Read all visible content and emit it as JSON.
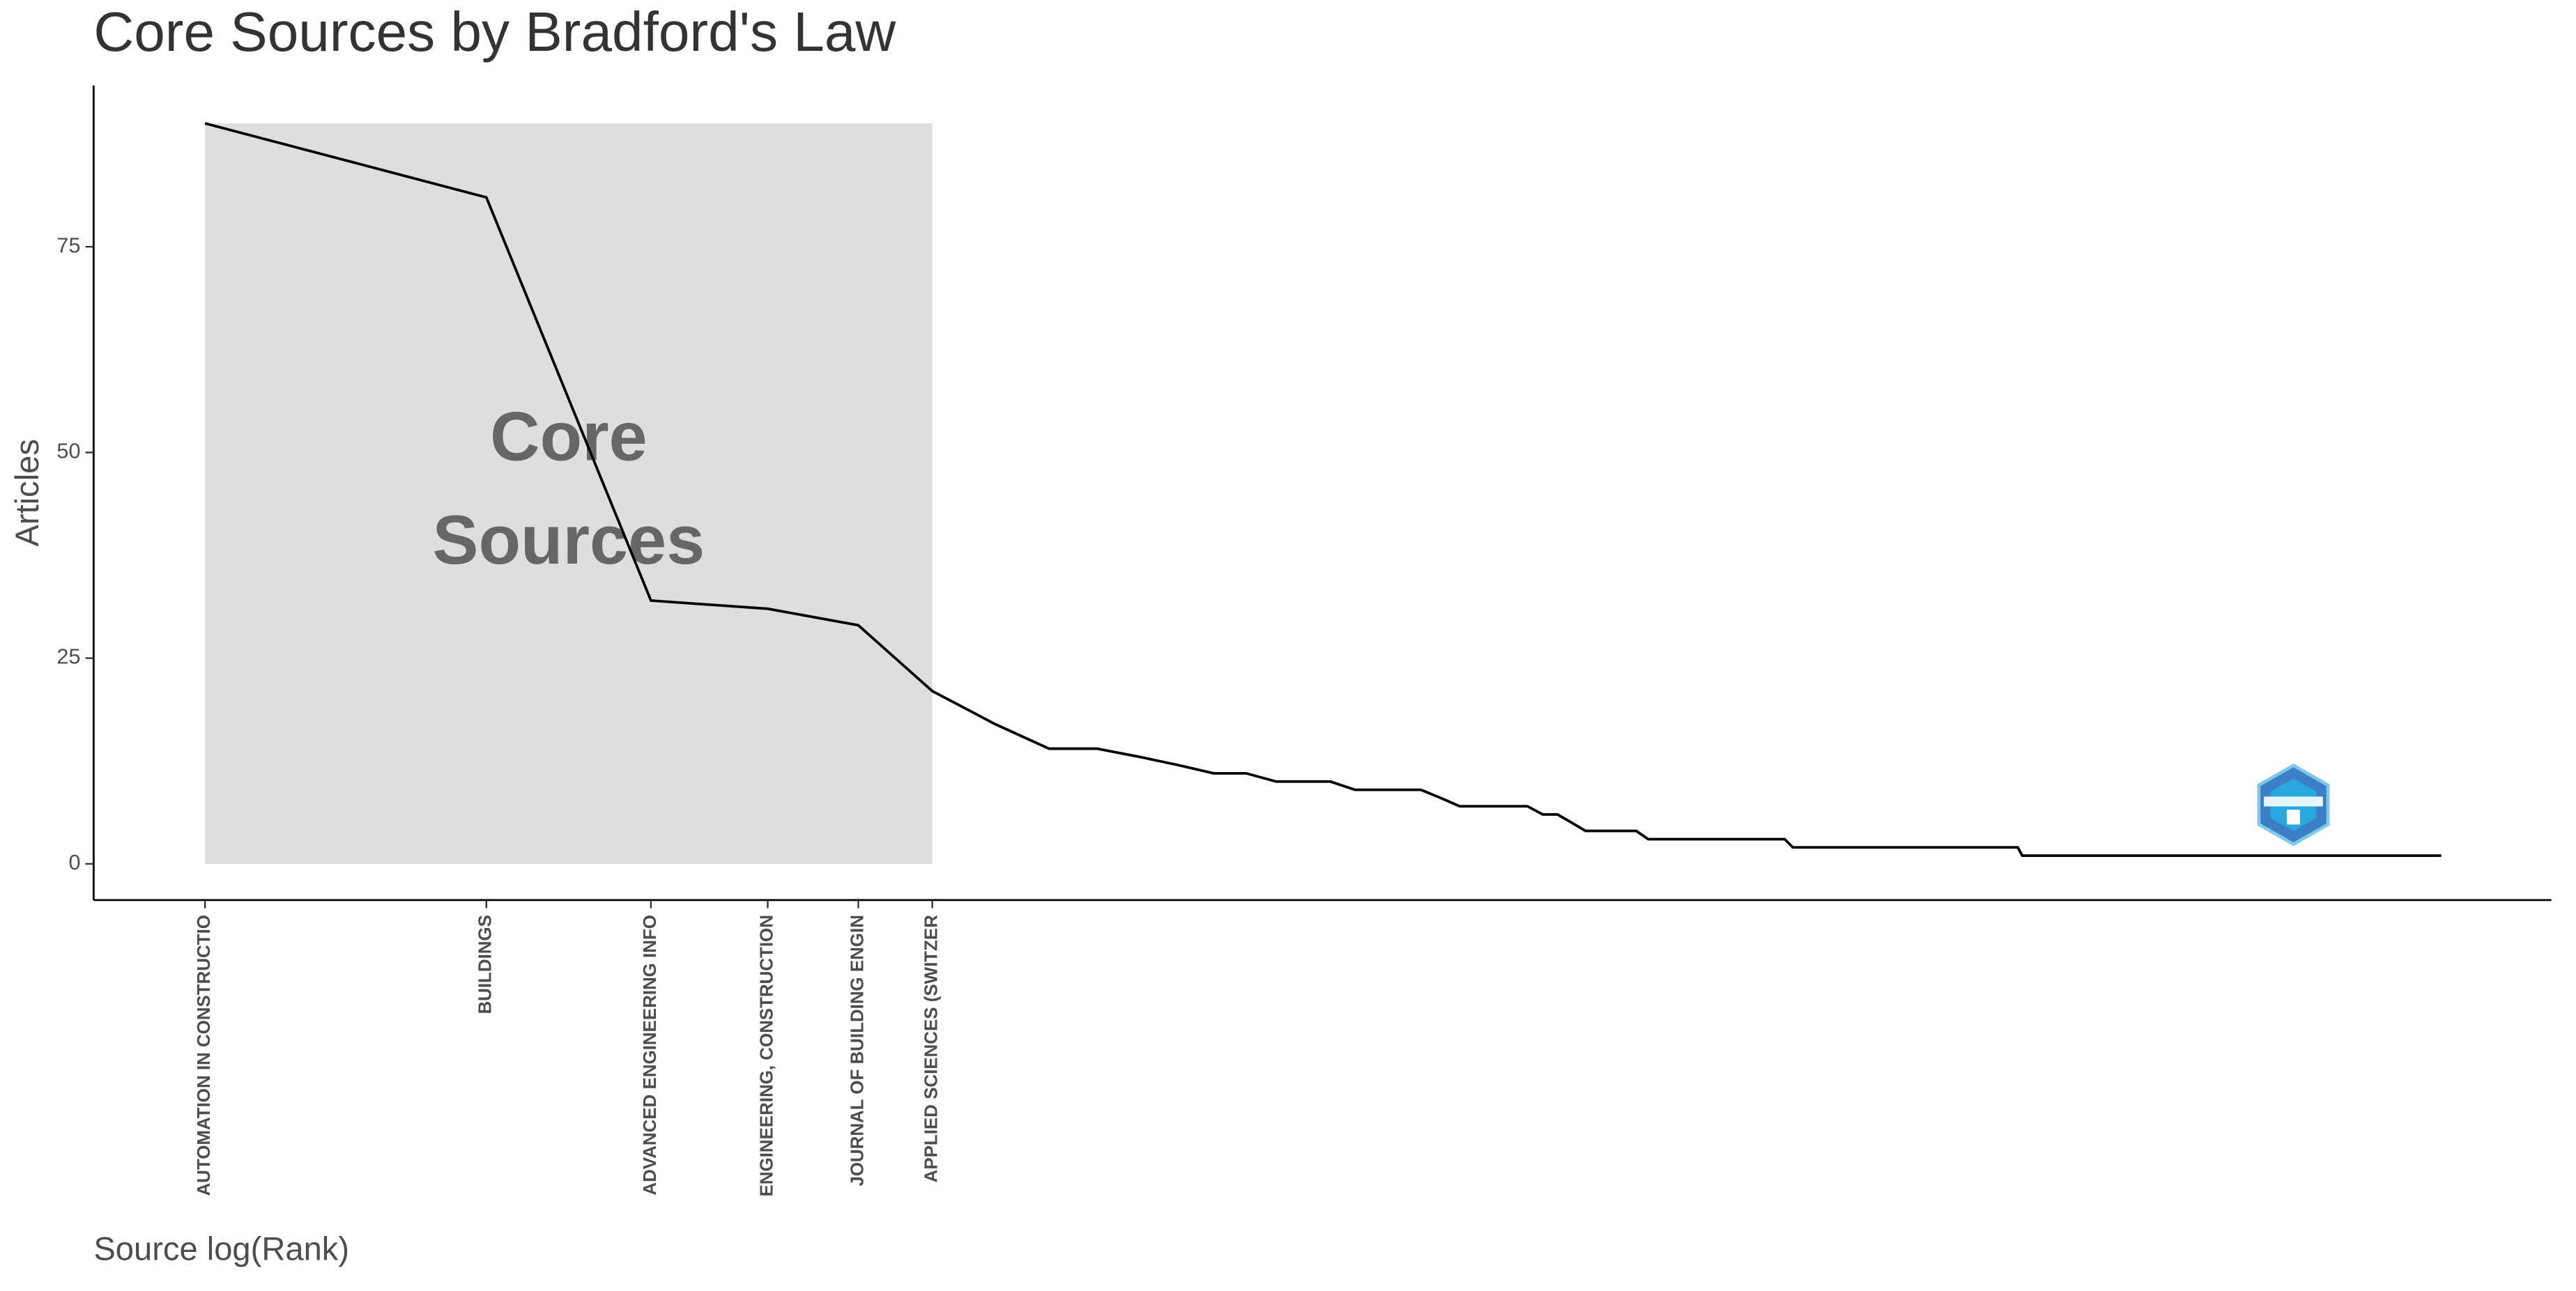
{
  "chart_data": {
    "type": "line",
    "title": "Core Sources by Bradford's Law",
    "x_label": "Source log(Rank)",
    "y_label": "Articles",
    "x": [
      1,
      2,
      3,
      4,
      5,
      6,
      7,
      8,
      9,
      10,
      11,
      12,
      13,
      14,
      16,
      17,
      20,
      21,
      22,
      26,
      27,
      28,
      29,
      30,
      34,
      35,
      49,
      50,
      87,
      88,
      247
    ],
    "values": [
      90,
      81,
      32,
      31,
      29,
      21,
      17,
      14,
      14,
      13,
      12,
      11,
      11,
      10,
      10,
      9,
      9,
      8,
      7,
      7,
      6,
      6,
      5,
      4,
      4,
      3,
      3,
      2,
      2,
      1,
      1
    ],
    "color": "#000000",
    "xscale": "log",
    "xlim": [
      0.76,
      324
    ],
    "ylim": [
      -4.4,
      94.6
    ],
    "xticks": [
      {
        "value": 1,
        "label": "AUTOMATION IN CONSTRUCTIO"
      },
      {
        "value": 2,
        "label": "BUILDINGS"
      },
      {
        "value": 3,
        "label": "ADVANCED ENGINEERING INFO"
      },
      {
        "value": 4,
        "label": "ENGINEERING, CONSTRUCTION"
      },
      {
        "value": 5,
        "label": "JOURNAL OF BUILDING ENGIN"
      },
      {
        "value": 6,
        "label": "APPLIED SCIENCES (SWITZER"
      }
    ],
    "yticks": [
      0,
      25,
      50,
      75
    ],
    "grid": false,
    "core_zone": {
      "x": [
        1,
        6
      ],
      "y": [
        0,
        90
      ],
      "color": "#dedede",
      "label": [
        "Core",
        "Sources"
      ]
    }
  }
}
